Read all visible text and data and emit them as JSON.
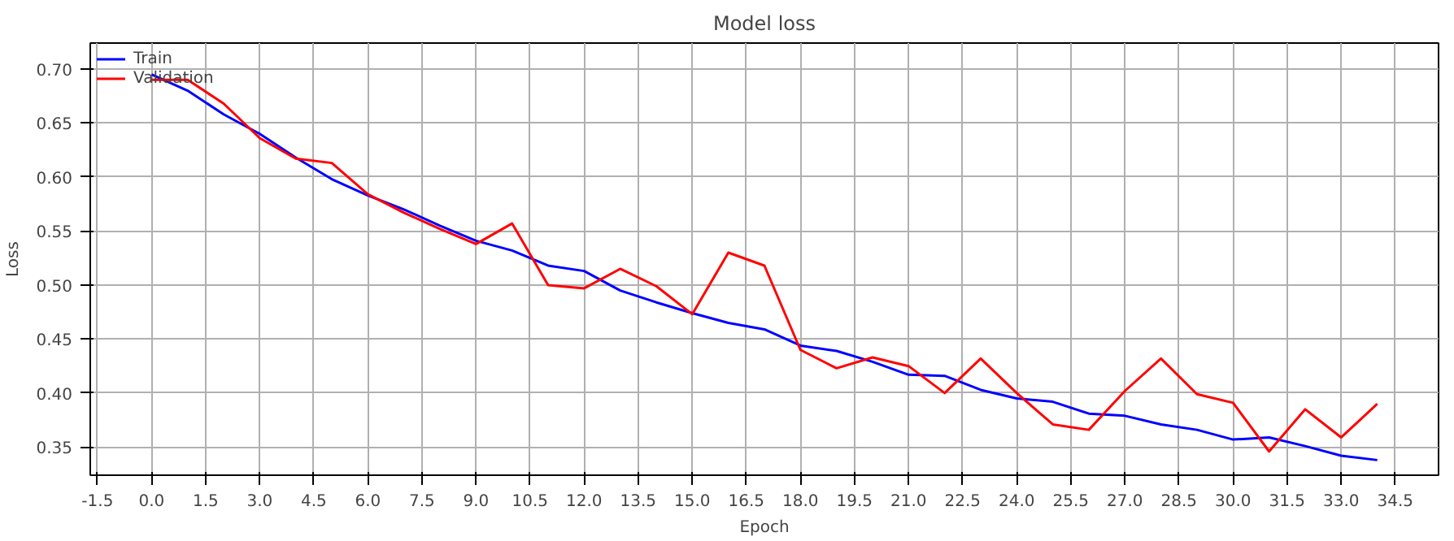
{
  "chart_data": {
    "type": "line",
    "title": "Model loss",
    "xlabel": "Epoch",
    "ylabel": "Loss",
    "x": [
      0,
      1,
      2,
      3,
      4,
      5,
      6,
      7,
      8,
      9,
      10,
      11,
      12,
      13,
      14,
      15,
      16,
      17,
      18,
      19,
      20,
      21,
      22,
      23,
      24,
      25,
      26,
      27,
      28,
      29,
      30,
      31,
      32,
      33,
      34
    ],
    "series": [
      {
        "name": "Train",
        "color": "#0000ff",
        "values": [
          0.695,
          0.68,
          0.658,
          0.64,
          0.618,
          0.598,
          0.583,
          0.57,
          0.555,
          0.541,
          0.532,
          0.518,
          0.513,
          0.495,
          0.484,
          0.474,
          0.465,
          0.459,
          0.444,
          0.439,
          0.429,
          0.417,
          0.416,
          0.403,
          0.395,
          0.392,
          0.381,
          0.379,
          0.371,
          0.366,
          0.357,
          0.359,
          0.351,
          0.342,
          0.338
        ]
      },
      {
        "name": "Validation",
        "color": "#ff0000",
        "values": [
          0.69,
          0.69,
          0.668,
          0.636,
          0.617,
          0.613,
          0.584,
          0.567,
          0.552,
          0.538,
          0.557,
          0.5,
          0.497,
          0.515,
          0.499,
          0.473,
          0.53,
          0.518,
          0.44,
          0.423,
          0.433,
          0.425,
          0.4,
          0.432,
          0.4,
          0.371,
          0.366,
          0.402,
          0.432,
          0.399,
          0.391,
          0.346,
          0.385,
          0.359,
          0.39
        ]
      }
    ],
    "xlim": [
      -1.7,
      35.7
    ],
    "ylim": [
      0.324,
      0.724
    ],
    "xticks": [
      -1.5,
      {
        "value": 0,
        "label": "0.0"
      },
      1.5,
      {
        "value": 3,
        "label": "3.0"
      },
      4.5,
      {
        "value": 6,
        "label": "6.0"
      },
      7.5,
      {
        "value": 9,
        "label": "9.0"
      },
      10.5,
      {
        "value": 12,
        "label": "12.0"
      },
      13.5,
      {
        "value": 15,
        "label": "15.0"
      },
      16.5,
      {
        "value": 18,
        "label": "18.0"
      },
      19.5,
      {
        "value": 21,
        "label": "21.0"
      },
      22.5,
      {
        "value": 24,
        "label": "24.0"
      },
      25.5,
      {
        "value": 27,
        "label": "27.0"
      },
      28.5,
      {
        "value": 30,
        "label": "30.0"
      },
      31.5,
      {
        "value": 33,
        "label": "33.0"
      },
      34.5
    ],
    "yticks": [
      0.35,
      {
        "value": 0.4,
        "label": "0.40"
      },
      0.45,
      {
        "value": 0.5,
        "label": "0.50"
      },
      0.55,
      {
        "value": 0.6,
        "label": "0.60"
      },
      0.65,
      {
        "value": 0.7,
        "label": "0.70"
      }
    ],
    "grid": true,
    "legend": "top left",
    "line_style": "solid",
    "marker": "none"
  }
}
